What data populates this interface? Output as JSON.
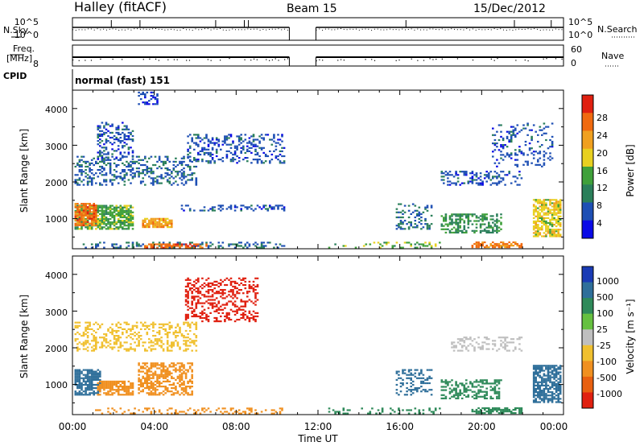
{
  "header": {
    "title": "Halley (fitACF)",
    "beam": "Beam 15",
    "date": "15/Dec/2012"
  },
  "strip_labels": {
    "nsky": "N.Sky",
    "nsearch": "N.Search",
    "freq_line1": "Freq.",
    "freq_line2": "[MHz]",
    "nave": "Nave",
    "cpid": "CPID",
    "cpid_value": "normal (fast) 151"
  },
  "strip_ticks": {
    "noise_top_left": "10^5",
    "noise_bottom_left": "10^0",
    "noise_top_right": "10^5",
    "noise_bottom_right": "10^0",
    "freq_top_left": "",
    "freq_bottom_left": "8",
    "nave_top_right": "60",
    "nave_bottom_right": "0"
  },
  "axes": {
    "ylabel": "Slant Range [km]",
    "yticks": [
      "1000",
      "2000",
      "3000",
      "4000"
    ],
    "xticks": [
      "00:00",
      "04:00",
      "08:00",
      "12:00",
      "16:00",
      "20:00",
      "00:00"
    ],
    "xlabel": "Time UT"
  },
  "colorbars": {
    "power": {
      "label": "Power [dB]",
      "ticks": [
        "4",
        "8",
        "12",
        "16",
        "20",
        "24",
        "28"
      ],
      "colors": [
        "#0a0ae6",
        "#1e4fb4",
        "#2a7f5a",
        "#3fa03a",
        "#e8d020",
        "#f0a020",
        "#f06a10",
        "#e02010"
      ]
    },
    "velocity": {
      "label": "Velocity [m s⁻¹]",
      "ticks": [
        "1000",
        "500",
        "100",
        "25",
        "-25",
        "-100",
        "-500",
        "-1000"
      ],
      "colors": [
        "#1a3bb5",
        "#2f6f9a",
        "#2f8a5a",
        "#66c040",
        "#bfbfbf",
        "#f0c030",
        "#f09020",
        "#e86010",
        "#e02010"
      ]
    }
  },
  "chart_data": [
    {
      "type": "heatmap",
      "name": "power",
      "x_range_hours": [
        0,
        24
      ],
      "y_range_km": [
        180,
        4500
      ],
      "color_range_db": [
        0,
        32
      ],
      "data_gap_hours": [
        10.6,
        11.9
      ],
      "regions": [
        {
          "t0": 0.1,
          "t1": 3.0,
          "r0": 700,
          "r1": 1350,
          "dens": 0.75,
          "val": 14
        },
        {
          "t0": 0.1,
          "t1": 1.2,
          "r0": 800,
          "r1": 1400,
          "dens": 0.8,
          "val": 26
        },
        {
          "t0": 3.4,
          "t1": 4.8,
          "r0": 750,
          "r1": 1000,
          "dens": 0.8,
          "val": 22
        },
        {
          "t0": 0.1,
          "t1": 6.0,
          "r0": 1900,
          "r1": 2700,
          "dens": 0.35,
          "val": 7
        },
        {
          "t0": 1.2,
          "t1": 3.0,
          "r0": 2600,
          "r1": 3600,
          "dens": 0.3,
          "val": 6
        },
        {
          "t0": 5.6,
          "t1": 10.3,
          "r0": 2500,
          "r1": 3300,
          "dens": 0.28,
          "val": 6
        },
        {
          "t0": 3.2,
          "t1": 4.2,
          "r0": 4100,
          "r1": 4450,
          "dens": 0.4,
          "val": 5
        },
        {
          "t0": 5.3,
          "t1": 10.3,
          "r0": 1200,
          "r1": 1350,
          "dens": 0.35,
          "val": 6
        },
        {
          "t0": 0.5,
          "t1": 10.4,
          "r0": 190,
          "r1": 330,
          "dens": 0.3,
          "val": 8
        },
        {
          "t0": 3.5,
          "t1": 6.5,
          "r0": 190,
          "r1": 290,
          "dens": 0.6,
          "val": 26
        },
        {
          "t0": 12.5,
          "t1": 18.0,
          "r0": 190,
          "r1": 330,
          "dens": 0.2,
          "val": 14
        },
        {
          "t0": 15.8,
          "t1": 17.6,
          "r0": 700,
          "r1": 1400,
          "dens": 0.3,
          "val": 8
        },
        {
          "t0": 18.0,
          "t1": 21.0,
          "r0": 600,
          "r1": 1100,
          "dens": 0.45,
          "val": 12
        },
        {
          "t0": 18.0,
          "t1": 22.0,
          "r0": 1900,
          "r1": 2300,
          "dens": 0.35,
          "val": 6
        },
        {
          "t0": 19.5,
          "t1": 22.0,
          "r0": 200,
          "r1": 350,
          "dens": 0.7,
          "val": 25
        },
        {
          "t0": 22.5,
          "t1": 23.9,
          "r0": 500,
          "r1": 1500,
          "dens": 0.7,
          "val": 18
        },
        {
          "t0": 20.5,
          "t1": 23.5,
          "r0": 2400,
          "r1": 3600,
          "dens": 0.18,
          "val": 6
        }
      ]
    },
    {
      "type": "heatmap",
      "name": "velocity",
      "x_range_hours": [
        0,
        24
      ],
      "y_range_km": [
        180,
        4500
      ],
      "color_range_ms": [
        -1000,
        1000
      ],
      "data_gap_hours": [
        10.6,
        11.9
      ],
      "regions": [
        {
          "t0": 0.1,
          "t1": 1.4,
          "r0": 700,
          "r1": 1400,
          "dens": 0.75,
          "val": 150
        },
        {
          "t0": 1.2,
          "t1": 3.0,
          "r0": 700,
          "r1": 1100,
          "dens": 0.7,
          "val": -180
        },
        {
          "t0": 3.2,
          "t1": 5.8,
          "r0": 700,
          "r1": 1600,
          "dens": 0.55,
          "val": -250
        },
        {
          "t0": 5.5,
          "t1": 9.0,
          "r0": 2700,
          "r1": 3900,
          "dens": 0.35,
          "val": -600
        },
        {
          "t0": 0.1,
          "t1": 6.0,
          "r0": 1900,
          "r1": 2700,
          "dens": 0.35,
          "val": -50
        },
        {
          "t0": 1.0,
          "t1": 10.3,
          "r0": 190,
          "r1": 330,
          "dens": 0.25,
          "val": -150
        },
        {
          "t0": 12.5,
          "t1": 18.0,
          "r0": 190,
          "r1": 330,
          "dens": 0.2,
          "val": 80
        },
        {
          "t0": 15.8,
          "t1": 17.6,
          "r0": 700,
          "r1": 1400,
          "dens": 0.3,
          "val": 150
        },
        {
          "t0": 18.0,
          "t1": 21.0,
          "r0": 600,
          "r1": 1100,
          "dens": 0.45,
          "val": 80
        },
        {
          "t0": 18.5,
          "t1": 22.0,
          "r0": 1900,
          "r1": 2300,
          "dens": 0.35,
          "val": 0
        },
        {
          "t0": 19.5,
          "t1": 22.0,
          "r0": 200,
          "r1": 350,
          "dens": 0.7,
          "val": 60
        },
        {
          "t0": 22.5,
          "t1": 23.9,
          "r0": 500,
          "r1": 1500,
          "dens": 0.7,
          "val": 200
        }
      ]
    }
  ]
}
